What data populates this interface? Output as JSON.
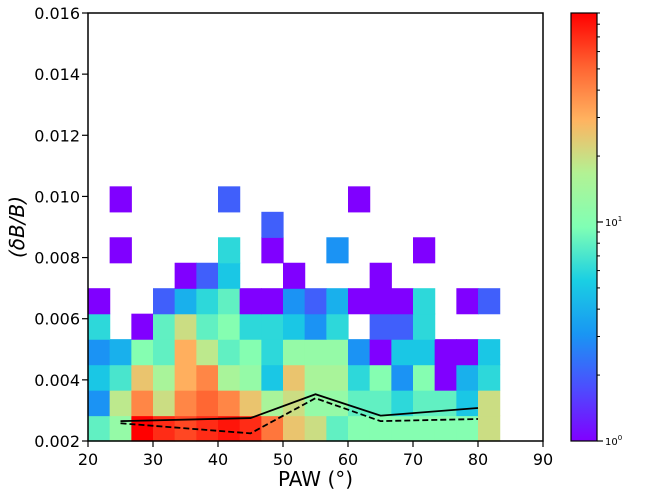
{
  "chart_data": {
    "type": "heatmap",
    "title": "",
    "xlabel": "PAW (°)",
    "ylabel": "(δB/B)",
    "xlim": [
      20,
      90
    ],
    "ylim": [
      0.002,
      0.016
    ],
    "x_bin_width": 3.33,
    "y_bin_width": 0.000833,
    "xticks": [
      "20",
      "30",
      "40",
      "50",
      "60",
      "70",
      "80",
      "90"
    ],
    "yticks": [
      "0.002",
      "0.004",
      "0.006",
      "0.008",
      "0.010",
      "0.012",
      "0.014",
      "0.016"
    ],
    "colorbar": {
      "scale": "log",
      "min": 1,
      "max": 90,
      "colormap": "rainbow",
      "tick_labels": [
        {
          "value": 1,
          "base": "10",
          "exp": "0"
        },
        {
          "value": 10,
          "base": "10",
          "exp": "1"
        }
      ]
    },
    "x_bin_starts": [
      20,
      23.33,
      26.67,
      30,
      33.33,
      36.67,
      40,
      43.33,
      46.67,
      50,
      53.33,
      56.67,
      60,
      63.33,
      66.67,
      70,
      73.33,
      76.67,
      80
    ],
    "counts_rows_low_to_high": [
      [
        8,
        12,
        90,
        70,
        60,
        70,
        80,
        70,
        45,
        25,
        20,
        8,
        10,
        10,
        10,
        10,
        10,
        10,
        20
      ],
      [
        3,
        18,
        40,
        20,
        40,
        50,
        40,
        25,
        15,
        20,
        12,
        12,
        8,
        8,
        6,
        8,
        8,
        5,
        20
      ],
      [
        5,
        7,
        25,
        15,
        30,
        40,
        15,
        12,
        5,
        25,
        15,
        15,
        6,
        10,
        3,
        10,
        1,
        4,
        6
      ],
      [
        3,
        4,
        10,
        8,
        30,
        18,
        8,
        10,
        6,
        12,
        12,
        12,
        3,
        1,
        5,
        5,
        1,
        1,
        5
      ],
      [
        6,
        0,
        1,
        8,
        20,
        8,
        10,
        6,
        6,
        5,
        3,
        6,
        0,
        2,
        2,
        6,
        0,
        0,
        0
      ],
      [
        1,
        0,
        0,
        2,
        4,
        6,
        8,
        1,
        1,
        3,
        2,
        4,
        1,
        1,
        1,
        6,
        0,
        1,
        2
      ],
      [
        0,
        0,
        0,
        0,
        1,
        2,
        5,
        0,
        0,
        1,
        0,
        0,
        0,
        1,
        0,
        0,
        0,
        0,
        0
      ],
      [
        0,
        1,
        0,
        0,
        0,
        0,
        6,
        0,
        1,
        0,
        0,
        3,
        0,
        0,
        0,
        1,
        0,
        0,
        0
      ],
      [
        0,
        0,
        0,
        0,
        0,
        0,
        0,
        0,
        2,
        0,
        0,
        0,
        0,
        0,
        0,
        0,
        0,
        0,
        0
      ],
      [
        0,
        1,
        0,
        0,
        0,
        0,
        2,
        0,
        0,
        0,
        0,
        0,
        1,
        0,
        0,
        0,
        0,
        0,
        0
      ]
    ],
    "series": [
      {
        "style": "solid",
        "color": "#000000",
        "x": [
          25,
          45,
          55,
          65,
          80
        ],
        "y": [
          0.00265,
          0.00275,
          0.00353,
          0.00283,
          0.00308
        ]
      },
      {
        "style": "dashed",
        "color": "#000000",
        "x": [
          25,
          45,
          55,
          65,
          80
        ],
        "y": [
          0.00258,
          0.00225,
          0.0034,
          0.00265,
          0.00272
        ]
      }
    ]
  }
}
